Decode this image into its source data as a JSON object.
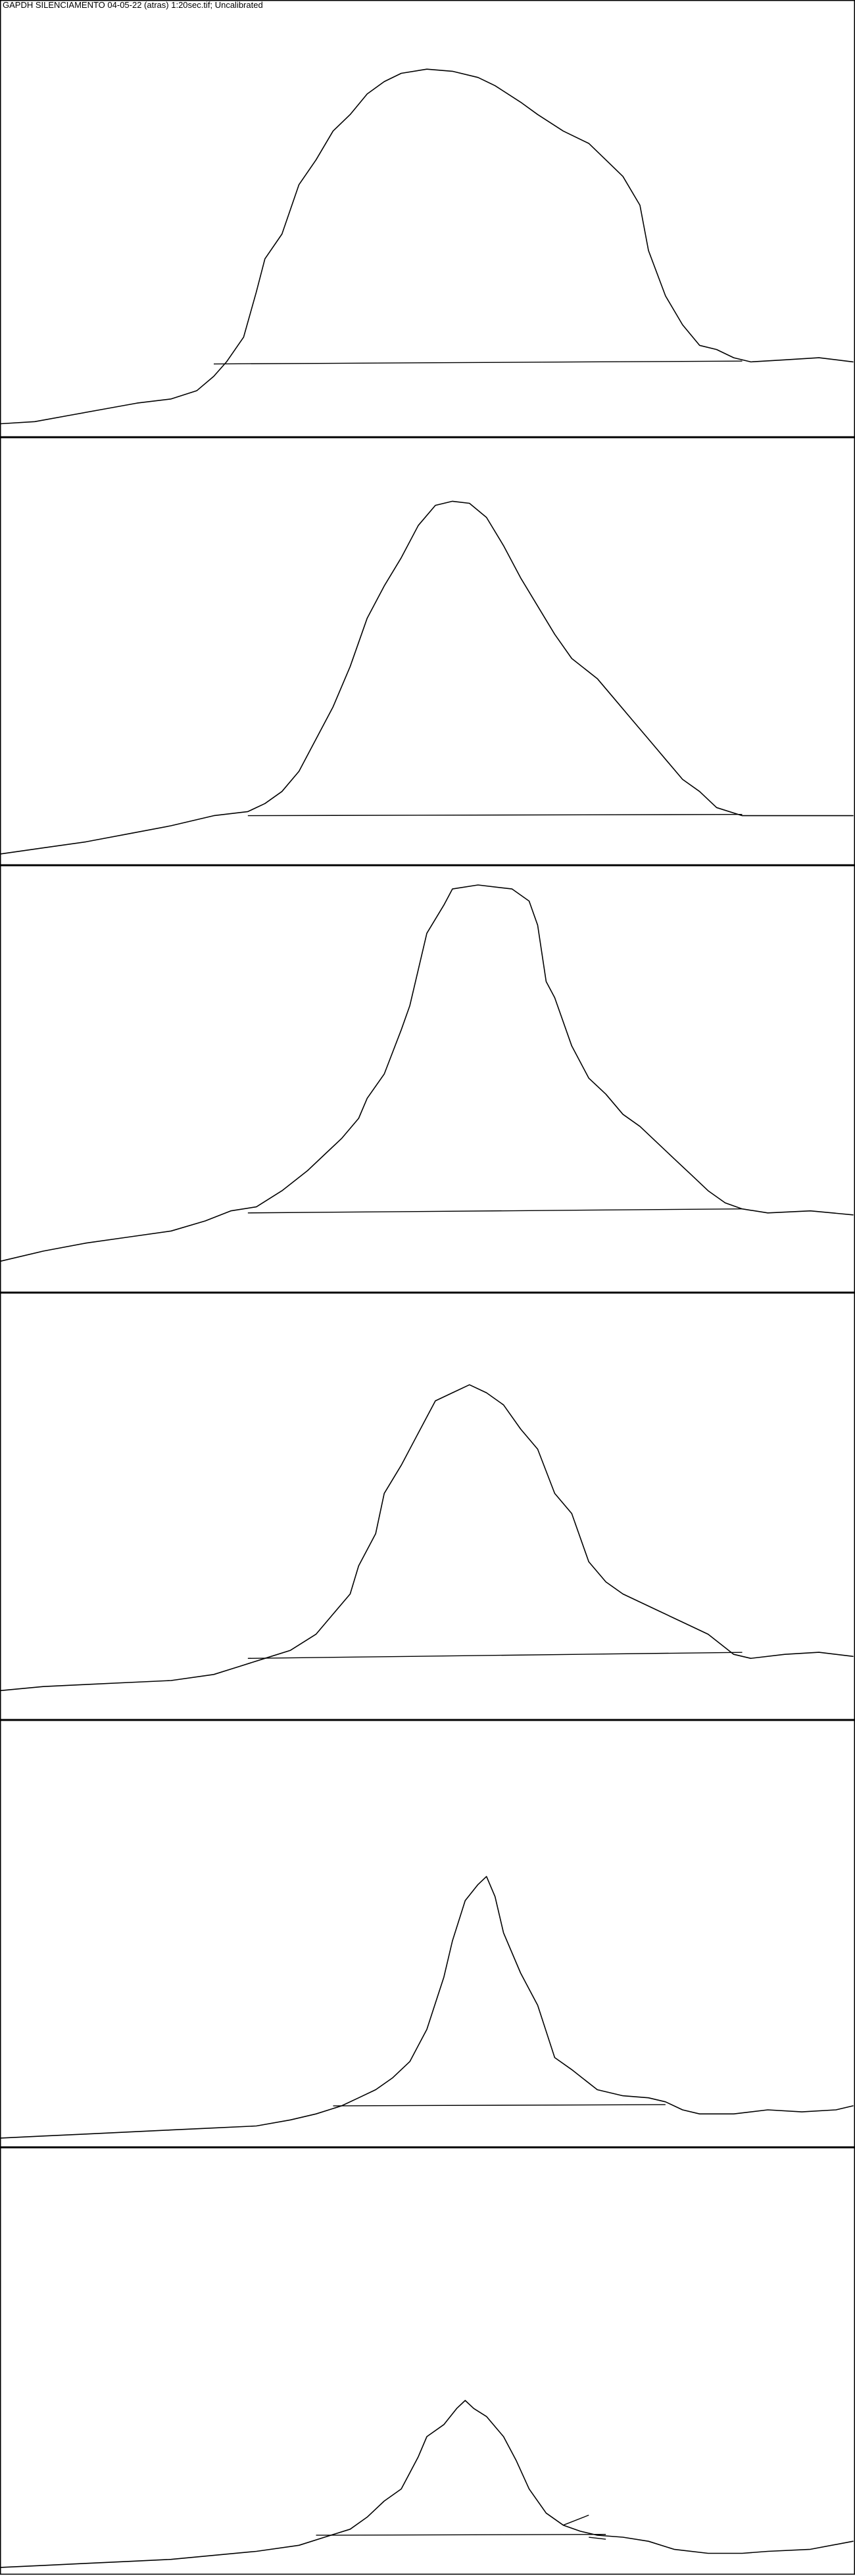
{
  "window": {
    "title": "GAPDH SILENCIAMENTO 04-05-22 (atras) 1:20sec.tif; Uncalibrated"
  },
  "chart_data": {
    "type": "line",
    "title": "GAPDH SILENCIAMENTO 04-05-22 (atras) 1:20sec.tif; Uncalibrated",
    "xlabel": "",
    "ylabel": "",
    "xlim": [
      0,
      1
    ],
    "ylim": [
      0,
      1
    ],
    "grid": false,
    "lanes": [
      {
        "lane": 1,
        "profile": [
          [
            0,
            0.02
          ],
          [
            0.04,
            0.025
          ],
          [
            0.08,
            0.04
          ],
          [
            0.12,
            0.055
          ],
          [
            0.16,
            0.07
          ],
          [
            0.2,
            0.08
          ],
          [
            0.23,
            0.1
          ],
          [
            0.25,
            0.135
          ],
          [
            0.265,
            0.17
          ],
          [
            0.285,
            0.23
          ],
          [
            0.3,
            0.34
          ],
          [
            0.31,
            0.42
          ],
          [
            0.33,
            0.48
          ],
          [
            0.35,
            0.6
          ],
          [
            0.37,
            0.66
          ],
          [
            0.39,
            0.73
          ],
          [
            0.41,
            0.77
          ],
          [
            0.43,
            0.82
          ],
          [
            0.45,
            0.85
          ],
          [
            0.47,
            0.87
          ],
          [
            0.5,
            0.88
          ],
          [
            0.53,
            0.875
          ],
          [
            0.56,
            0.86
          ],
          [
            0.58,
            0.84
          ],
          [
            0.61,
            0.8
          ],
          [
            0.63,
            0.77
          ],
          [
            0.66,
            0.73
          ],
          [
            0.69,
            0.7
          ],
          [
            0.71,
            0.66
          ],
          [
            0.73,
            0.62
          ],
          [
            0.75,
            0.55
          ],
          [
            0.76,
            0.44
          ],
          [
            0.78,
            0.33
          ],
          [
            0.8,
            0.26
          ],
          [
            0.82,
            0.21
          ],
          [
            0.84,
            0.2
          ],
          [
            0.86,
            0.18
          ],
          [
            0.88,
            0.17
          ],
          [
            0.92,
            0.175
          ],
          [
            0.96,
            0.18
          ],
          [
            1.0,
            0.17
          ]
        ],
        "baseline": [
          [
            0.25,
            0.165
          ],
          [
            0.87,
            0.172
          ]
        ]
      },
      {
        "lane": 2,
        "profile": [
          [
            0,
            0.015
          ],
          [
            0.05,
            0.03
          ],
          [
            0.1,
            0.045
          ],
          [
            0.15,
            0.065
          ],
          [
            0.2,
            0.085
          ],
          [
            0.25,
            0.11
          ],
          [
            0.29,
            0.12
          ],
          [
            0.31,
            0.14
          ],
          [
            0.33,
            0.17
          ],
          [
            0.35,
            0.22
          ],
          [
            0.37,
            0.3
          ],
          [
            0.39,
            0.38
          ],
          [
            0.41,
            0.48
          ],
          [
            0.43,
            0.6
          ],
          [
            0.45,
            0.68
          ],
          [
            0.47,
            0.75
          ],
          [
            0.49,
            0.83
          ],
          [
            0.51,
            0.88
          ],
          [
            0.53,
            0.89
          ],
          [
            0.55,
            0.885
          ],
          [
            0.57,
            0.85
          ],
          [
            0.59,
            0.78
          ],
          [
            0.61,
            0.7
          ],
          [
            0.63,
            0.63
          ],
          [
            0.65,
            0.56
          ],
          [
            0.67,
            0.5
          ],
          [
            0.7,
            0.45
          ],
          [
            0.72,
            0.4
          ],
          [
            0.74,
            0.35
          ],
          [
            0.76,
            0.3
          ],
          [
            0.78,
            0.25
          ],
          [
            0.8,
            0.2
          ],
          [
            0.82,
            0.17
          ],
          [
            0.84,
            0.13
          ],
          [
            0.87,
            0.11
          ],
          [
            0.9,
            0.11
          ],
          [
            0.95,
            0.11
          ],
          [
            1.0,
            0.11
          ]
        ],
        "baseline": [
          [
            0.29,
            0.11
          ],
          [
            0.87,
            0.113
          ]
        ]
      },
      {
        "lane": 3,
        "profile": [
          [
            0,
            0.065
          ],
          [
            0.05,
            0.09
          ],
          [
            0.1,
            0.11
          ],
          [
            0.15,
            0.125
          ],
          [
            0.2,
            0.14
          ],
          [
            0.24,
            0.165
          ],
          [
            0.27,
            0.19
          ],
          [
            0.3,
            0.2
          ],
          [
            0.33,
            0.24
          ],
          [
            0.36,
            0.29
          ],
          [
            0.38,
            0.33
          ],
          [
            0.4,
            0.37
          ],
          [
            0.42,
            0.42
          ],
          [
            0.43,
            0.47
          ],
          [
            0.45,
            0.53
          ],
          [
            0.47,
            0.64
          ],
          [
            0.48,
            0.7
          ],
          [
            0.5,
            0.88
          ],
          [
            0.52,
            0.95
          ],
          [
            0.53,
            0.99
          ],
          [
            0.56,
            1.0
          ],
          [
            0.6,
            0.99
          ],
          [
            0.62,
            0.96
          ],
          [
            0.63,
            0.9
          ],
          [
            0.64,
            0.76
          ],
          [
            0.65,
            0.72
          ],
          [
            0.67,
            0.6
          ],
          [
            0.69,
            0.52
          ],
          [
            0.71,
            0.48
          ],
          [
            0.73,
            0.43
          ],
          [
            0.75,
            0.4
          ],
          [
            0.77,
            0.36
          ],
          [
            0.79,
            0.32
          ],
          [
            0.81,
            0.28
          ],
          [
            0.83,
            0.24
          ],
          [
            0.85,
            0.21
          ],
          [
            0.87,
            0.195
          ],
          [
            0.9,
            0.185
          ],
          [
            0.95,
            0.19
          ],
          [
            1.0,
            0.18
          ]
        ],
        "baseline": [
          [
            0.29,
            0.185
          ],
          [
            0.87,
            0.195
          ]
        ]
      },
      {
        "lane": 4,
        "profile": [
          [
            0,
            0.06
          ],
          [
            0.05,
            0.07
          ],
          [
            0.1,
            0.075
          ],
          [
            0.15,
            0.08
          ],
          [
            0.2,
            0.085
          ],
          [
            0.25,
            0.1
          ],
          [
            0.28,
            0.12
          ],
          [
            0.31,
            0.14
          ],
          [
            0.34,
            0.16
          ],
          [
            0.37,
            0.2
          ],
          [
            0.39,
            0.25
          ],
          [
            0.41,
            0.3
          ],
          [
            0.42,
            0.37
          ],
          [
            0.44,
            0.45
          ],
          [
            0.45,
            0.55
          ],
          [
            0.47,
            0.62
          ],
          [
            0.49,
            0.7
          ],
          [
            0.51,
            0.78
          ],
          [
            0.53,
            0.8
          ],
          [
            0.55,
            0.82
          ],
          [
            0.57,
            0.8
          ],
          [
            0.59,
            0.77
          ],
          [
            0.61,
            0.71
          ],
          [
            0.63,
            0.66
          ],
          [
            0.65,
            0.55
          ],
          [
            0.67,
            0.5
          ],
          [
            0.69,
            0.38
          ],
          [
            0.71,
            0.33
          ],
          [
            0.73,
            0.3
          ],
          [
            0.75,
            0.28
          ],
          [
            0.77,
            0.26
          ],
          [
            0.79,
            0.24
          ],
          [
            0.81,
            0.22
          ],
          [
            0.83,
            0.2
          ],
          [
            0.86,
            0.15
          ],
          [
            0.88,
            0.14
          ],
          [
            0.92,
            0.15
          ],
          [
            0.96,
            0.155
          ],
          [
            1.0,
            0.145
          ]
        ],
        "baseline": [
          [
            0.29,
            0.14
          ],
          [
            0.87,
            0.155
          ]
        ]
      },
      {
        "lane": 5,
        "profile": [
          [
            0,
            0.01
          ],
          [
            0.05,
            0.015
          ],
          [
            0.1,
            0.02
          ],
          [
            0.15,
            0.025
          ],
          [
            0.2,
            0.03
          ],
          [
            0.25,
            0.035
          ],
          [
            0.3,
            0.04
          ],
          [
            0.34,
            0.055
          ],
          [
            0.37,
            0.07
          ],
          [
            0.4,
            0.09
          ],
          [
            0.42,
            0.11
          ],
          [
            0.44,
            0.13
          ],
          [
            0.46,
            0.16
          ],
          [
            0.48,
            0.2
          ],
          [
            0.5,
            0.28
          ],
          [
            0.52,
            0.41
          ],
          [
            0.53,
            0.5
          ],
          [
            0.545,
            0.6
          ],
          [
            0.56,
            0.64
          ],
          [
            0.57,
            0.66
          ],
          [
            0.58,
            0.61
          ],
          [
            0.59,
            0.52
          ],
          [
            0.61,
            0.42
          ],
          [
            0.63,
            0.34
          ],
          [
            0.65,
            0.21
          ],
          [
            0.67,
            0.18
          ],
          [
            0.7,
            0.13
          ],
          [
            0.73,
            0.115
          ],
          [
            0.76,
            0.11
          ],
          [
            0.78,
            0.1
          ],
          [
            0.8,
            0.08
          ],
          [
            0.82,
            0.07
          ],
          [
            0.86,
            0.07
          ],
          [
            0.9,
            0.08
          ],
          [
            0.94,
            0.075
          ],
          [
            0.98,
            0.08
          ],
          [
            1.0,
            0.09
          ]
        ],
        "baseline": [
          [
            0.39,
            0.09
          ],
          [
            0.78,
            0.093
          ]
        ]
      },
      {
        "lane": 6,
        "profile": [
          [
            0,
            0.005
          ],
          [
            0.05,
            0.01
          ],
          [
            0.1,
            0.015
          ],
          [
            0.15,
            0.02
          ],
          [
            0.2,
            0.025
          ],
          [
            0.25,
            0.035
          ],
          [
            0.3,
            0.045
          ],
          [
            0.35,
            0.06
          ],
          [
            0.38,
            0.08
          ],
          [
            0.41,
            0.1
          ],
          [
            0.43,
            0.13
          ],
          [
            0.45,
            0.17
          ],
          [
            0.47,
            0.2
          ],
          [
            0.48,
            0.24
          ],
          [
            0.49,
            0.28
          ],
          [
            0.5,
            0.33
          ],
          [
            0.52,
            0.36
          ],
          [
            0.535,
            0.4
          ],
          [
            0.545,
            0.42
          ],
          [
            0.555,
            0.4
          ],
          [
            0.57,
            0.38
          ],
          [
            0.59,
            0.33
          ],
          [
            0.605,
            0.27
          ],
          [
            0.62,
            0.2
          ],
          [
            0.64,
            0.14
          ],
          [
            0.66,
            0.11
          ],
          [
            0.68,
            0.095
          ],
          [
            0.7,
            0.085
          ],
          [
            0.73,
            0.08
          ],
          [
            0.76,
            0.07
          ],
          [
            0.79,
            0.05
          ],
          [
            0.83,
            0.04
          ],
          [
            0.87,
            0.04
          ],
          [
            0.9,
            0.045
          ],
          [
            0.95,
            0.05
          ],
          [
            1.0,
            0.07
          ]
        ],
        "baseline": [
          [
            0.37,
            0.085
          ],
          [
            0.71,
            0.087
          ]
        ],
        "marks": [
          [
            [
              0.66,
              0.11
            ],
            [
              0.69,
              0.135
            ]
          ],
          [
            [
              0.69,
              0.08
            ],
            [
              0.71,
              0.075
            ]
          ]
        ]
      }
    ]
  }
}
